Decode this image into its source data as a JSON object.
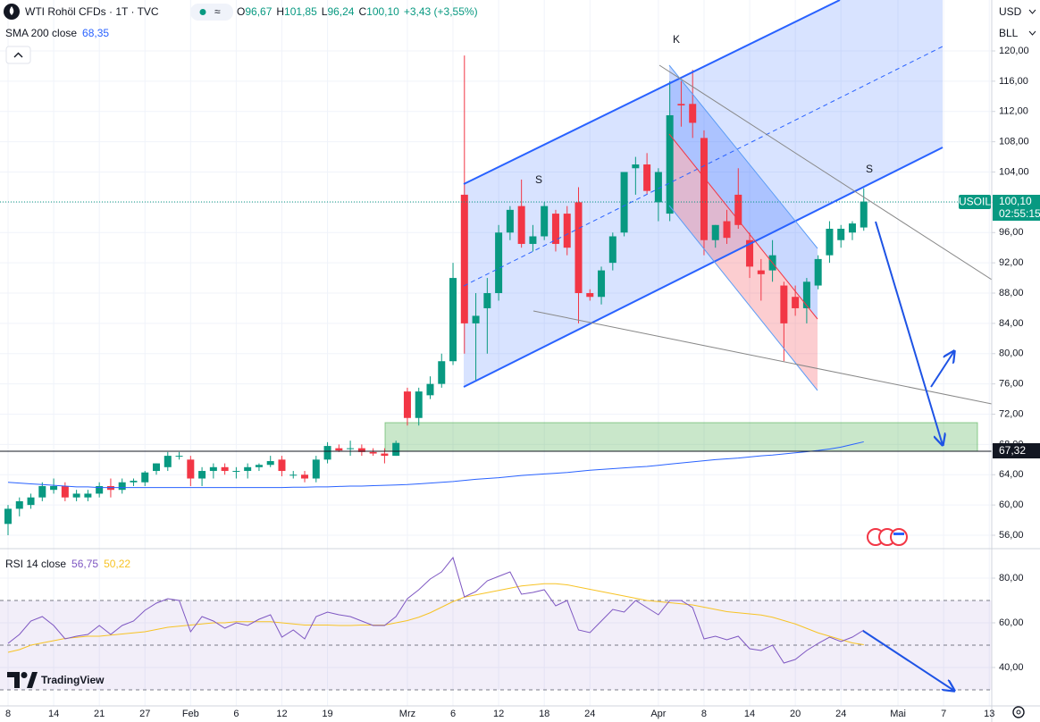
{
  "header": {
    "symbol": "WTI Rohöl CFDs · 1T · TVC",
    "o": "O",
    "open": "96,67",
    "h": "H",
    "high": "101,85",
    "l": "L",
    "low": "96,24",
    "c": "C",
    "close": "100,10",
    "change": "+3,43 (+3,55%)",
    "sma_value": "68,35",
    "rsi_value": "56,75",
    "rsi_ma_value": "50,22"
  },
  "currency": "USD",
  "unit": "BLL",
  "price_tags": {
    "symbol": "USOIL",
    "last": "100,10",
    "countdown": "02:55:15",
    "line": "67,32"
  },
  "annotations": [
    "K",
    "S",
    "S"
  ],
  "brand": "TradingView",
  "chart_data": [
    {
      "type": "candlestick",
      "categories": [
        "8",
        null,
        null,
        null,
        "14",
        null,
        null,
        null,
        "21",
        null,
        null,
        null,
        "27",
        null,
        null,
        null,
        "Feb",
        null,
        null,
        null,
        "6",
        null,
        null,
        null,
        "12",
        null,
        null,
        null,
        "19",
        null,
        null,
        null,
        null,
        null,
        null,
        "Mrz",
        null,
        null,
        null,
        "6",
        null,
        null,
        null,
        "12",
        null,
        null,
        null,
        "18",
        null,
        null,
        null,
        "24",
        null,
        null,
        null,
        null,
        null,
        "Apr",
        null,
        null,
        null,
        "8",
        null,
        null,
        null,
        "14",
        null,
        null,
        null,
        "20",
        null,
        null,
        null,
        "24",
        null,
        null,
        null,
        null,
        "Mai",
        null,
        null,
        null,
        "7",
        null,
        null,
        null,
        "13"
      ],
      "open": [
        57.5,
        59.5,
        60,
        61,
        62,
        62.5,
        61,
        61,
        61.5,
        62.5,
        62,
        63,
        63,
        64.5,
        65,
        66.5,
        66,
        63.5,
        64.5,
        65,
        64.5,
        64.5,
        65,
        65.3,
        66,
        64,
        64,
        63.5,
        66,
        67.5,
        67.5,
        67.5,
        67,
        66.8,
        66.5,
        75,
        71.5,
        74.5,
        76,
        79,
        101,
        84,
        86,
        88,
        96,
        99.5,
        94.5,
        95.5,
        98.5,
        98.5,
        100,
        88,
        87.5,
        92,
        96,
        104.5,
        105,
        100,
        98.5,
        113,
        113,
        108.5,
        95,
        97.5,
        101,
        95,
        91,
        91,
        89,
        87.5,
        86,
        89,
        93,
        95,
        96,
        96.67,
        null,
        null,
        null,
        null,
        null,
        null,
        null,
        null,
        null,
        null,
        null
      ],
      "high": [
        60,
        61,
        61.5,
        63,
        63.5,
        63,
        62,
        62,
        63,
        63.5,
        63.5,
        63.5,
        64.5,
        65.5,
        67,
        67,
        66.5,
        65,
        65.5,
        65.5,
        65,
        65.5,
        65.5,
        66.5,
        66.5,
        64.5,
        64.5,
        66.5,
        68.3,
        68,
        68.5,
        68,
        67.5,
        67.5,
        68.5,
        75.5,
        75.5,
        77,
        80,
        92,
        119.4,
        88,
        90,
        97,
        99.5,
        103,
        97,
        100,
        99,
        99.5,
        102,
        88.5,
        91.5,
        96,
        104,
        106,
        106.5,
        104.5,
        116,
        116,
        117.5,
        109.5,
        97,
        99,
        104.5,
        96,
        92.5,
        95,
        89.5,
        89,
        90,
        93,
        97.5,
        97,
        97.5,
        101.85,
        null,
        null,
        null,
        null,
        null,
        null,
        null,
        null,
        null,
        null,
        null
      ],
      "low": [
        56,
        58.5,
        59.5,
        60.5,
        61.5,
        60.5,
        60.5,
        60.5,
        61,
        61,
        61.5,
        62.5,
        62.5,
        64,
        64.5,
        66,
        62.5,
        62.5,
        63.5,
        64,
        63.5,
        63.5,
        64.5,
        65,
        63.8,
        63.5,
        63,
        63,
        65.5,
        67,
        66.5,
        66.5,
        66.5,
        65.5,
        66.5,
        70.5,
        70.5,
        74,
        75.5,
        78.5,
        80,
        76.5,
        80,
        87,
        95,
        94,
        93.5,
        95,
        93.5,
        93,
        84,
        87,
        86.5,
        91,
        95.5,
        101,
        101,
        97.5,
        97.5,
        110,
        108.5,
        93,
        94,
        94.5,
        96.5,
        90,
        87,
        89.5,
        79,
        85,
        84,
        88.5,
        92,
        94,
        95,
        96.24,
        null,
        null,
        null,
        null,
        null,
        null,
        null,
        null,
        null,
        null,
        null
      ],
      "close": [
        59.5,
        60.5,
        61,
        62.5,
        62.5,
        61,
        61.5,
        61.5,
        62.5,
        62,
        63,
        63.2,
        64.3,
        65.5,
        66.5,
        66.5,
        63.5,
        64.5,
        65,
        64.5,
        64.5,
        65,
        65.3,
        65.8,
        64.5,
        64,
        63.5,
        66,
        67.8,
        67.2,
        67.5,
        67,
        66.8,
        66.5,
        68.2,
        71.5,
        75,
        76,
        79,
        90,
        84,
        85,
        88,
        96,
        99,
        94.5,
        95.5,
        99.5,
        94.5,
        94,
        88,
        87.5,
        91,
        95.5,
        104,
        105,
        101.5,
        104,
        111.5,
        112.8,
        110.5,
        95,
        97,
        95.3,
        97,
        91.5,
        90.5,
        93,
        84,
        86,
        89.5,
        92.5,
        96.5,
        96.5,
        97.2,
        100.1,
        null,
        null,
        null,
        null,
        null,
        null,
        null,
        null,
        null,
        null,
        null
      ],
      "up_color": "#089981",
      "down_color": "#f23645",
      "series": [
        {
          "name": "SMA 200 close",
          "color": "#2962ff",
          "values": [
            63.0,
            62.9,
            62.8,
            62.7,
            62.6,
            62.5,
            62.4,
            62.4,
            62.3,
            62.3,
            62.3,
            62.3,
            62.3,
            62.3,
            62.3,
            62.3,
            62.3,
            62.3,
            62.3,
            62.3,
            62.3,
            62.3,
            62.3,
            62.3,
            62.3,
            62.35,
            62.35,
            62.4,
            62.4,
            62.45,
            62.5,
            62.5,
            62.55,
            62.6,
            62.65,
            62.7,
            62.8,
            62.9,
            63.0,
            63.1,
            63.25,
            63.4,
            63.5,
            63.6,
            63.75,
            63.9,
            64.0,
            64.1,
            64.2,
            64.3,
            64.45,
            64.6,
            64.7,
            64.8,
            64.9,
            65.0,
            65.1,
            65.25,
            65.4,
            65.55,
            65.7,
            65.85,
            66.0,
            66.1,
            66.2,
            66.35,
            66.5,
            66.6,
            66.75,
            66.9,
            67.05,
            67.2,
            67.4,
            67.65,
            68.0,
            68.35,
            null,
            null,
            null,
            null,
            null,
            null,
            null,
            null,
            null,
            null,
            null
          ]
        }
      ],
      "ylim": [
        54.35,
        126.73
      ],
      "yticks": [
        {
          "value": 56,
          "label": "56,00"
        },
        {
          "value": 60,
          "label": "60,00"
        },
        {
          "value": 64,
          "label": "64,00"
        },
        {
          "value": 68,
          "label": "68,00"
        },
        {
          "value": 72,
          "label": "72,00"
        },
        {
          "value": 76,
          "label": "76,00"
        },
        {
          "value": 80,
          "label": "80,00"
        },
        {
          "value": 84,
          "label": "84,00"
        },
        {
          "value": 88,
          "label": "88,00"
        },
        {
          "value": 92,
          "label": "92,00"
        },
        {
          "value": 96,
          "label": "96,00"
        },
        {
          "value": 100,
          "label": "100,00"
        },
        {
          "value": 104,
          "label": "104,00"
        },
        {
          "value": 108,
          "label": "108,00"
        },
        {
          "value": 112,
          "label": "112,00"
        },
        {
          "value": 116,
          "label": "116,00"
        },
        {
          "value": 120,
          "label": "120,00"
        }
      ],
      "grid": true
    },
    {
      "type": "line",
      "series": [
        {
          "name": "RSI 14 close",
          "color": "#7e57c2",
          "values": [
            50.8,
            54.8,
            60.8,
            62.8,
            58.8,
            52.8,
            54,
            54.8,
            58.8,
            54.8,
            58.8,
            60.8,
            65.6,
            68.8,
            70.8,
            70,
            56,
            62.8,
            60.8,
            57.6,
            60,
            58.8,
            61.6,
            63.6,
            53.6,
            56.8,
            52.8,
            62.8,
            64.8,
            63.6,
            62.8,
            60.8,
            58.8,
            58.8,
            62.8,
            70.8,
            74.8,
            79.6,
            82.8,
            89.2,
            71.6,
            74,
            78.8,
            80.8,
            82.8,
            72.8,
            73.6,
            74.8,
            67.6,
            70,
            56.8,
            55.6,
            60.8,
            66,
            64.8,
            70,
            66.8,
            63.6,
            70,
            70,
            66.8,
            52.8,
            54,
            52.4,
            54,
            48.4,
            47.6,
            50,
            42,
            43.6,
            47.6,
            50.8,
            53.6,
            51.6,
            53.6,
            56.75,
            null,
            null,
            null,
            null,
            null,
            null,
            null,
            null,
            null,
            null,
            null
          ]
        },
        {
          "color": "#f7c325",
          "values": [
            46.8,
            48,
            50,
            51,
            52,
            53,
            53.5,
            54,
            54,
            54.5,
            55,
            55.5,
            56,
            57,
            58,
            58.5,
            59,
            59.5,
            60,
            60,
            60.5,
            60.5,
            60.5,
            60.5,
            60,
            59.5,
            59,
            59,
            59,
            58.8,
            58.8,
            59,
            59,
            59,
            60,
            61,
            62.5,
            64.5,
            67,
            69.5,
            71.5,
            72.5,
            73.5,
            74.5,
            75.5,
            76.5,
            77,
            77.5,
            77.5,
            77,
            76,
            75,
            74,
            73,
            72,
            71,
            70,
            69.5,
            69,
            68.5,
            68,
            67,
            66,
            65,
            64.5,
            64,
            63.5,
            62.5,
            61,
            59.5,
            57.5,
            55.5,
            54,
            52.5,
            51,
            50.22,
            null,
            null,
            null,
            null,
            null,
            null,
            null,
            null,
            null,
            null,
            null
          ]
        }
      ],
      "levels": [
        70,
        50,
        30
      ],
      "band_color": "#7e57c2",
      "ylim": [
        22.8,
        93.2
      ],
      "yticks": [
        {
          "value": 40,
          "label": "40,00"
        },
        {
          "value": 60,
          "label": "60,00"
        },
        {
          "value": 80,
          "label": "80,00"
        }
      ],
      "grid": true
    }
  ]
}
